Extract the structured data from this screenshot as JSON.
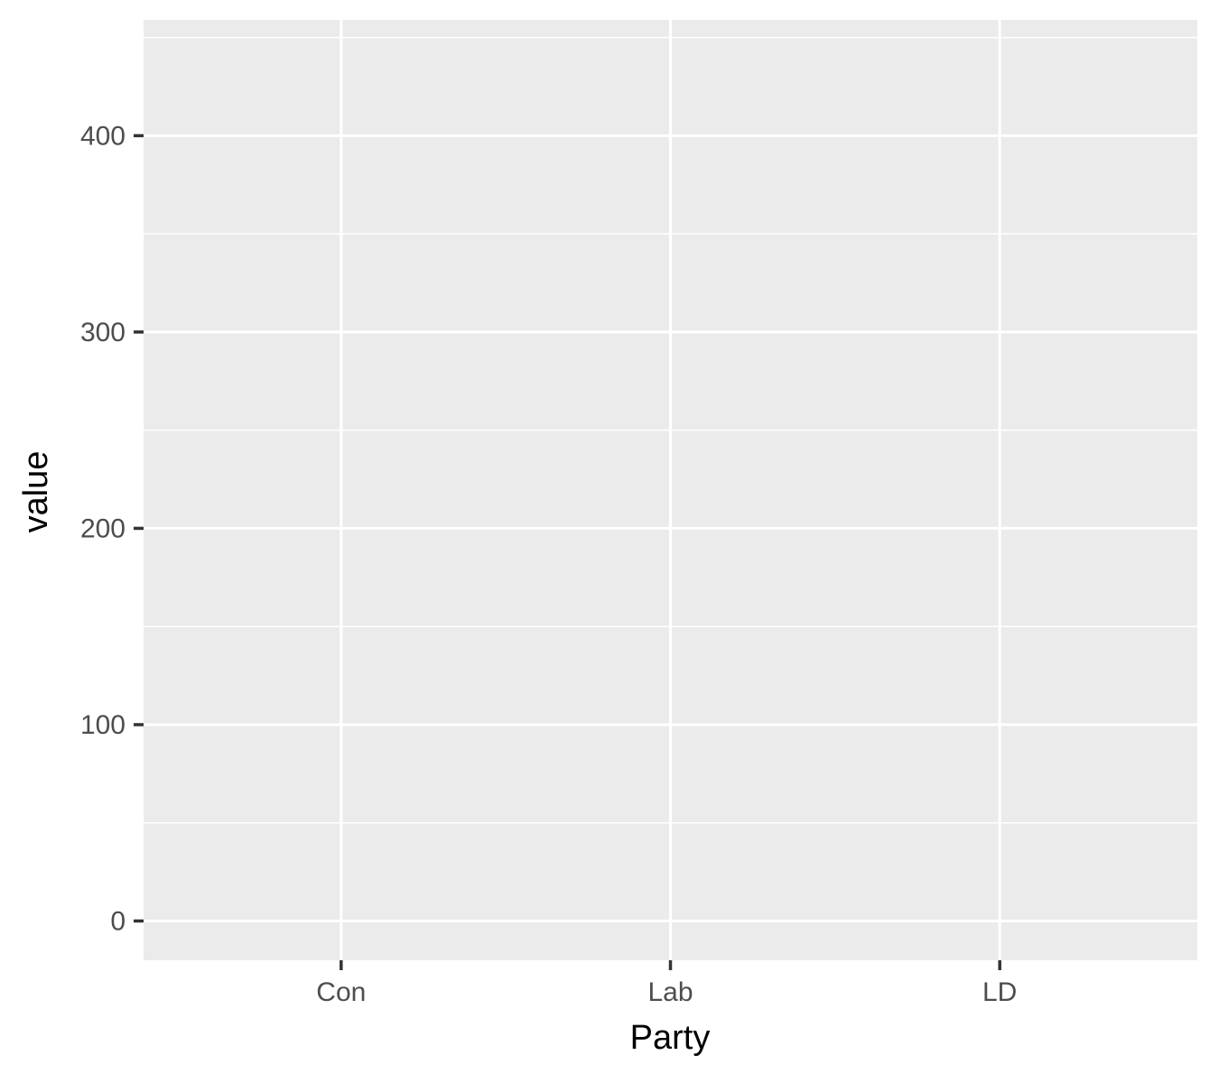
{
  "chart_data": {
    "type": "bar",
    "x_label": "Party",
    "y_label": "value",
    "categories": [
      "Con",
      "Lab",
      "LD"
    ],
    "ylim": [
      -20,
      459
    ],
    "yticks": [
      0,
      100,
      200,
      300,
      400
    ],
    "y_minor_ticks": [
      50,
      150,
      250,
      350,
      450
    ],
    "grid": true
  }
}
